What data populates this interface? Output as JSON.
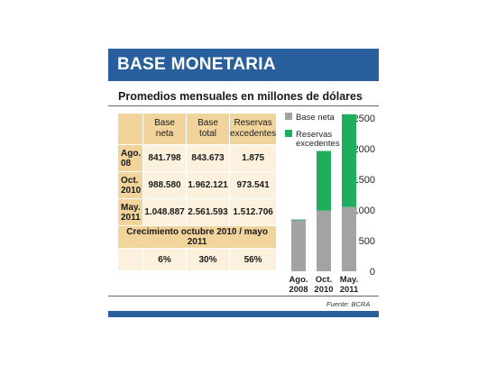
{
  "header": {
    "title": "BASE MONETARIA",
    "subtitle": "Promedios mensuales en millones de dólares"
  },
  "table": {
    "columns": [
      {
        "line1": "Base",
        "line2": "neta"
      },
      {
        "line1": "Base",
        "line2": "total"
      },
      {
        "line1": "Reservas",
        "line2": "excedentes"
      }
    ],
    "rows": [
      {
        "label1": "Ago.",
        "label2": "08",
        "values": [
          "841.798",
          "843.673",
          "1.875"
        ]
      },
      {
        "label1": "Oct.",
        "label2": "2010",
        "values": [
          "988.580",
          "1.962.121",
          "973.541"
        ]
      },
      {
        "label1": "May.",
        "label2": "2011",
        "values": [
          "1.048.887",
          "2.561.593",
          "1.512.706"
        ]
      }
    ],
    "growth_label": "Crecimiento octubre 2010 / mayo 2011",
    "growth_values": [
      "6%",
      "30%",
      "56%"
    ]
  },
  "chart_data": {
    "type": "bar",
    "stacked": true,
    "categories": [
      "Ago.\n2008",
      "Oct.\n2010",
      "May.\n2011"
    ],
    "category_lines": [
      [
        "Ago.",
        "2008"
      ],
      [
        "Oct.",
        "2010"
      ],
      [
        "May.",
        "2011"
      ]
    ],
    "series": [
      {
        "name": "Base neta",
        "values": [
          842,
          989,
          1049
        ],
        "color": "#a3a3a3"
      },
      {
        "name": "Reservas excedentes",
        "values": [
          2,
          974,
          1513
        ],
        "color": "#1fae5e"
      }
    ],
    "ylim": [
      0,
      2500
    ],
    "yticks": [
      "0",
      "500",
      "1000",
      "1500",
      "2000",
      "2500"
    ],
    "axis_side": "right",
    "legend_position": "top-left",
    "legend_lines": [
      [
        "Base neta"
      ],
      [
        "Reservas",
        "excedentes"
      ]
    ]
  },
  "footer": {
    "source": "Fuente: BCRA"
  },
  "colors": {
    "brand": "#2a5f9e",
    "header_fill": "#f0d49b",
    "cell_fill": "#fbf1dc"
  }
}
